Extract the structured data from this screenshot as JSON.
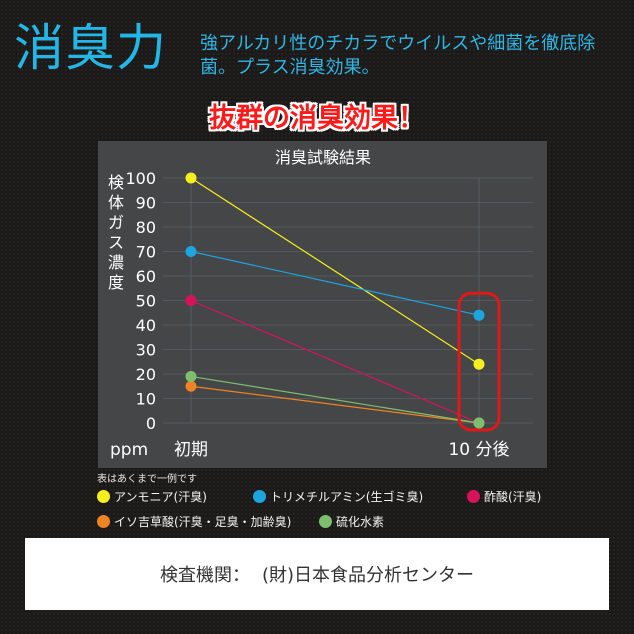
{
  "header": {
    "title": "消臭力",
    "subtitle": "強アルカリ性のチカラでウイルスや細菌を徹底除菌。プラス消臭効果。",
    "banner": "抜群の消臭効果！"
  },
  "chart_data": {
    "type": "line",
    "title": "消臭試験結果",
    "ylabel": "検体ガス濃度",
    "yunit": "ppm",
    "categories": [
      "初期",
      "10 分後"
    ],
    "ylim": [
      0,
      100
    ],
    "yticks": [
      0,
      10,
      20,
      30,
      40,
      50,
      60,
      70,
      80,
      90,
      100
    ],
    "grid": true,
    "highlight_category": "10 分後",
    "highlight_color": "#e01818",
    "series": [
      {
        "name": "アンモニア(汗臭)",
        "values": [
          100,
          24
        ],
        "color": "#f7ee1e"
      },
      {
        "name": "トリメチルアミン(生ゴミ臭)",
        "values": [
          70,
          44
        ],
        "color": "#1ba6e0"
      },
      {
        "name": "酢酸(汗臭)",
        "values": [
          50,
          0
        ],
        "color": "#d6135a"
      },
      {
        "name": "イソ吉草酸(汗臭・足臭・加齢臭)",
        "values": [
          15,
          0
        ],
        "color": "#ef8222"
      },
      {
        "name": "硫化水素",
        "values": [
          19,
          0
        ],
        "color": "#7dbf6e"
      }
    ],
    "note": "表はあくまで一例です"
  },
  "footer": {
    "label": "検査機関：",
    "organization": "(財)日本食品分析センター"
  }
}
